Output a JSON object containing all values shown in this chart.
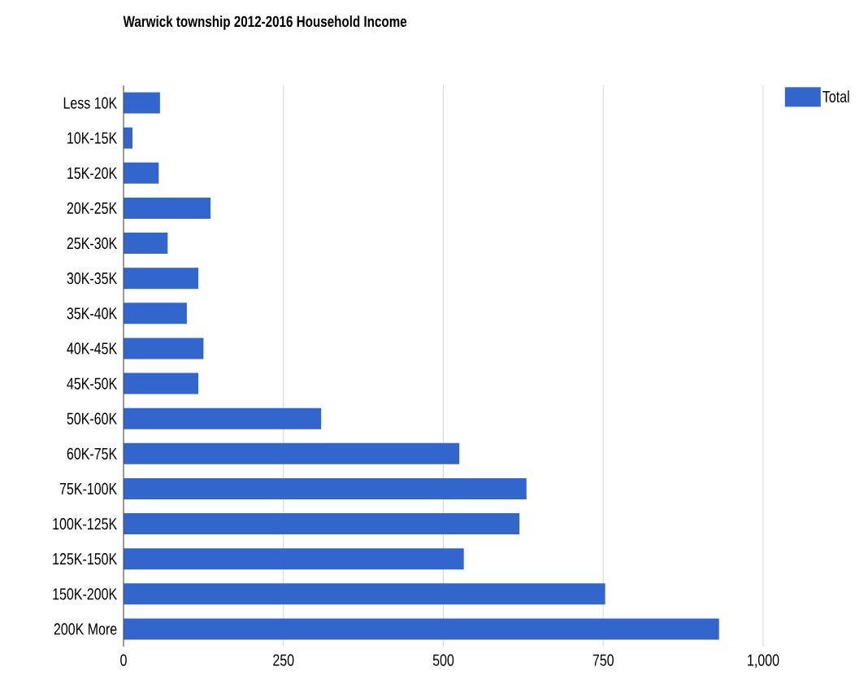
{
  "chart_data": {
    "type": "bar",
    "orientation": "horizontal",
    "title": "Warwick township 2012-2016 Household Income",
    "categories": [
      "Less 10K",
      "10K-15K",
      "15K-20K",
      "20K-25K",
      "25K-30K",
      "30K-35K",
      "35K-40K",
      "40K-45K",
      "45K-50K",
      "50K-60K",
      "60K-75K",
      "75K-100K",
      "100K-125K",
      "125K-150K",
      "150K-200K",
      "200K More"
    ],
    "series": [
      {
        "name": "Total",
        "color": "#3366cc",
        "values": [
          57,
          14,
          55,
          136,
          69,
          117,
          99,
          125,
          117,
          309,
          525,
          630,
          619,
          532,
          753,
          931
        ]
      }
    ],
    "xlim": [
      0,
      1000
    ],
    "xticks": [
      0,
      250,
      500,
      750,
      {
        "value": 1000,
        "label": "1,000"
      }
    ],
    "grid": "x",
    "legend": "top right"
  }
}
